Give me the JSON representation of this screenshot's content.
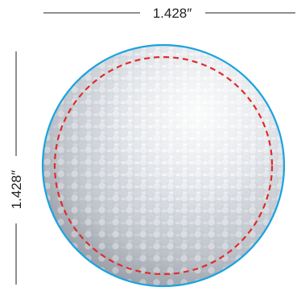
{
  "dimensions": {
    "width_label": "1.428″",
    "height_label": "1.428″"
  },
  "graphic": {
    "icon": "golf-ball",
    "outline_color": "#1aa3df",
    "safe_zone_color": "#e02b2b",
    "dimension_line_color": "#222222"
  }
}
